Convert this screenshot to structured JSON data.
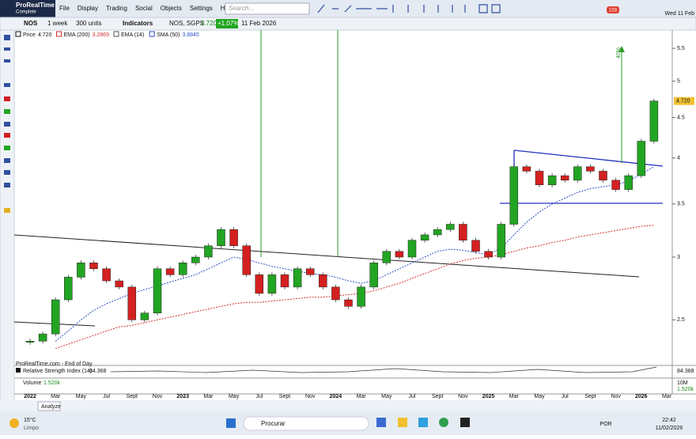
{
  "menu": {
    "app": "ProRealTime",
    "edition": "Complete",
    "items": [
      "File",
      "Display",
      "Trading",
      "Social",
      "Objects",
      "Settings",
      "Help"
    ],
    "search": "Search...",
    "badge": "103",
    "clock": "Wed 11 Feb"
  },
  "toolbar": {
    "ticker": "NOS",
    "period": "1 week",
    "units": "300 units",
    "indicators": "Indicators",
    "name": "NOS, SGPS",
    "price": "4.720",
    "change": "+1.07%",
    "date": "11 Feb 2026"
  },
  "legend": [
    {
      "name": "Price",
      "value": "4.720"
    },
    {
      "name": "EMA (200)",
      "value": "3.2869"
    },
    {
      "name": "EMA (14)"
    },
    {
      "name": "SMA (50)",
      "value": "3.8845"
    }
  ],
  "chart_data": {
    "type": "candlestick",
    "x_labels": [
      "2022",
      "Mar",
      "May",
      "Jul",
      "Sept",
      "Nov",
      "2023",
      "Mar",
      "May",
      "Jul",
      "Sept",
      "Nov",
      "2024",
      "Mar",
      "May",
      "Jul",
      "Sept",
      "Nov",
      "2025",
      "Mar",
      "May",
      "Jul",
      "Sept",
      "Nov",
      "2026",
      "Mar"
    ],
    "closes": [
      2.35,
      2.4,
      2.65,
      2.83,
      2.95,
      2.9,
      2.8,
      2.75,
      2.5,
      2.55,
      2.9,
      2.85,
      2.95,
      3.0,
      3.1,
      3.25,
      3.1,
      2.85,
      2.7,
      2.85,
      2.75,
      2.9,
      2.85,
      2.75,
      2.65,
      2.6,
      2.75,
      2.95,
      3.05,
      3.0,
      3.15,
      3.2,
      3.25,
      3.3,
      3.15,
      3.05,
      3.0,
      3.3,
      3.9,
      3.85,
      3.7,
      3.8,
      3.75,
      3.9,
      3.85,
      3.75,
      3.65,
      3.8,
      4.2,
      4.72
    ],
    "ema200": [
      null,
      null,
      2.3,
      2.33,
      2.36,
      2.39,
      2.42,
      2.45,
      2.46,
      2.48,
      2.5,
      2.52,
      2.54,
      2.56,
      2.58,
      2.6,
      2.62,
      2.63,
      2.63,
      2.64,
      2.65,
      2.66,
      2.67,
      2.67,
      2.68,
      2.69,
      2.7,
      2.72,
      2.75,
      2.78,
      2.82,
      2.86,
      2.9,
      2.94,
      2.97,
      2.99,
      3.0,
      3.02,
      3.05,
      3.08,
      3.1,
      3.13,
      3.15,
      3.18,
      3.2,
      3.22,
      3.24,
      3.26,
      3.28,
      3.29
    ],
    "sma50": [
      null,
      null,
      2.35,
      2.42,
      2.5,
      2.57,
      2.62,
      2.66,
      2.7,
      2.73,
      2.76,
      2.79,
      2.82,
      2.85,
      2.9,
      2.95,
      3.0,
      2.98,
      2.95,
      2.92,
      2.9,
      2.88,
      2.86,
      2.85,
      2.83,
      2.8,
      2.78,
      2.8,
      2.85,
      2.9,
      2.95,
      3.0,
      3.05,
      3.07,
      3.06,
      3.04,
      3.02,
      3.08,
      3.2,
      3.32,
      3.42,
      3.5,
      3.56,
      3.62,
      3.66,
      3.68,
      3.7,
      3.74,
      3.82,
      3.9
    ],
    "ylim": [
      2.19,
      5.8
    ],
    "yticks": [
      2.5,
      3,
      3.5,
      4,
      4.5,
      5,
      5.5
    ],
    "log_scale": true,
    "up_color": "#22a522",
    "down_color": "#d42020",
    "ema_color": "#d03030",
    "sma_color": "#2a50c8",
    "last_label": "4.720",
    "annotation": "40%",
    "source": "ProRealTime.com - End of Day"
  },
  "rsi": {
    "label": "Relative Strength Index (14)",
    "value": "84.368"
  },
  "volume": {
    "label": "Volume",
    "value": "1.520k",
    "scale": "10M"
  },
  "analyze": "Analyze",
  "taskbar": {
    "temp": "15°C",
    "weather": "Limpo",
    "search": "Procurar",
    "lang": "POR",
    "time": "22:42",
    "date": "11/02/2026"
  }
}
